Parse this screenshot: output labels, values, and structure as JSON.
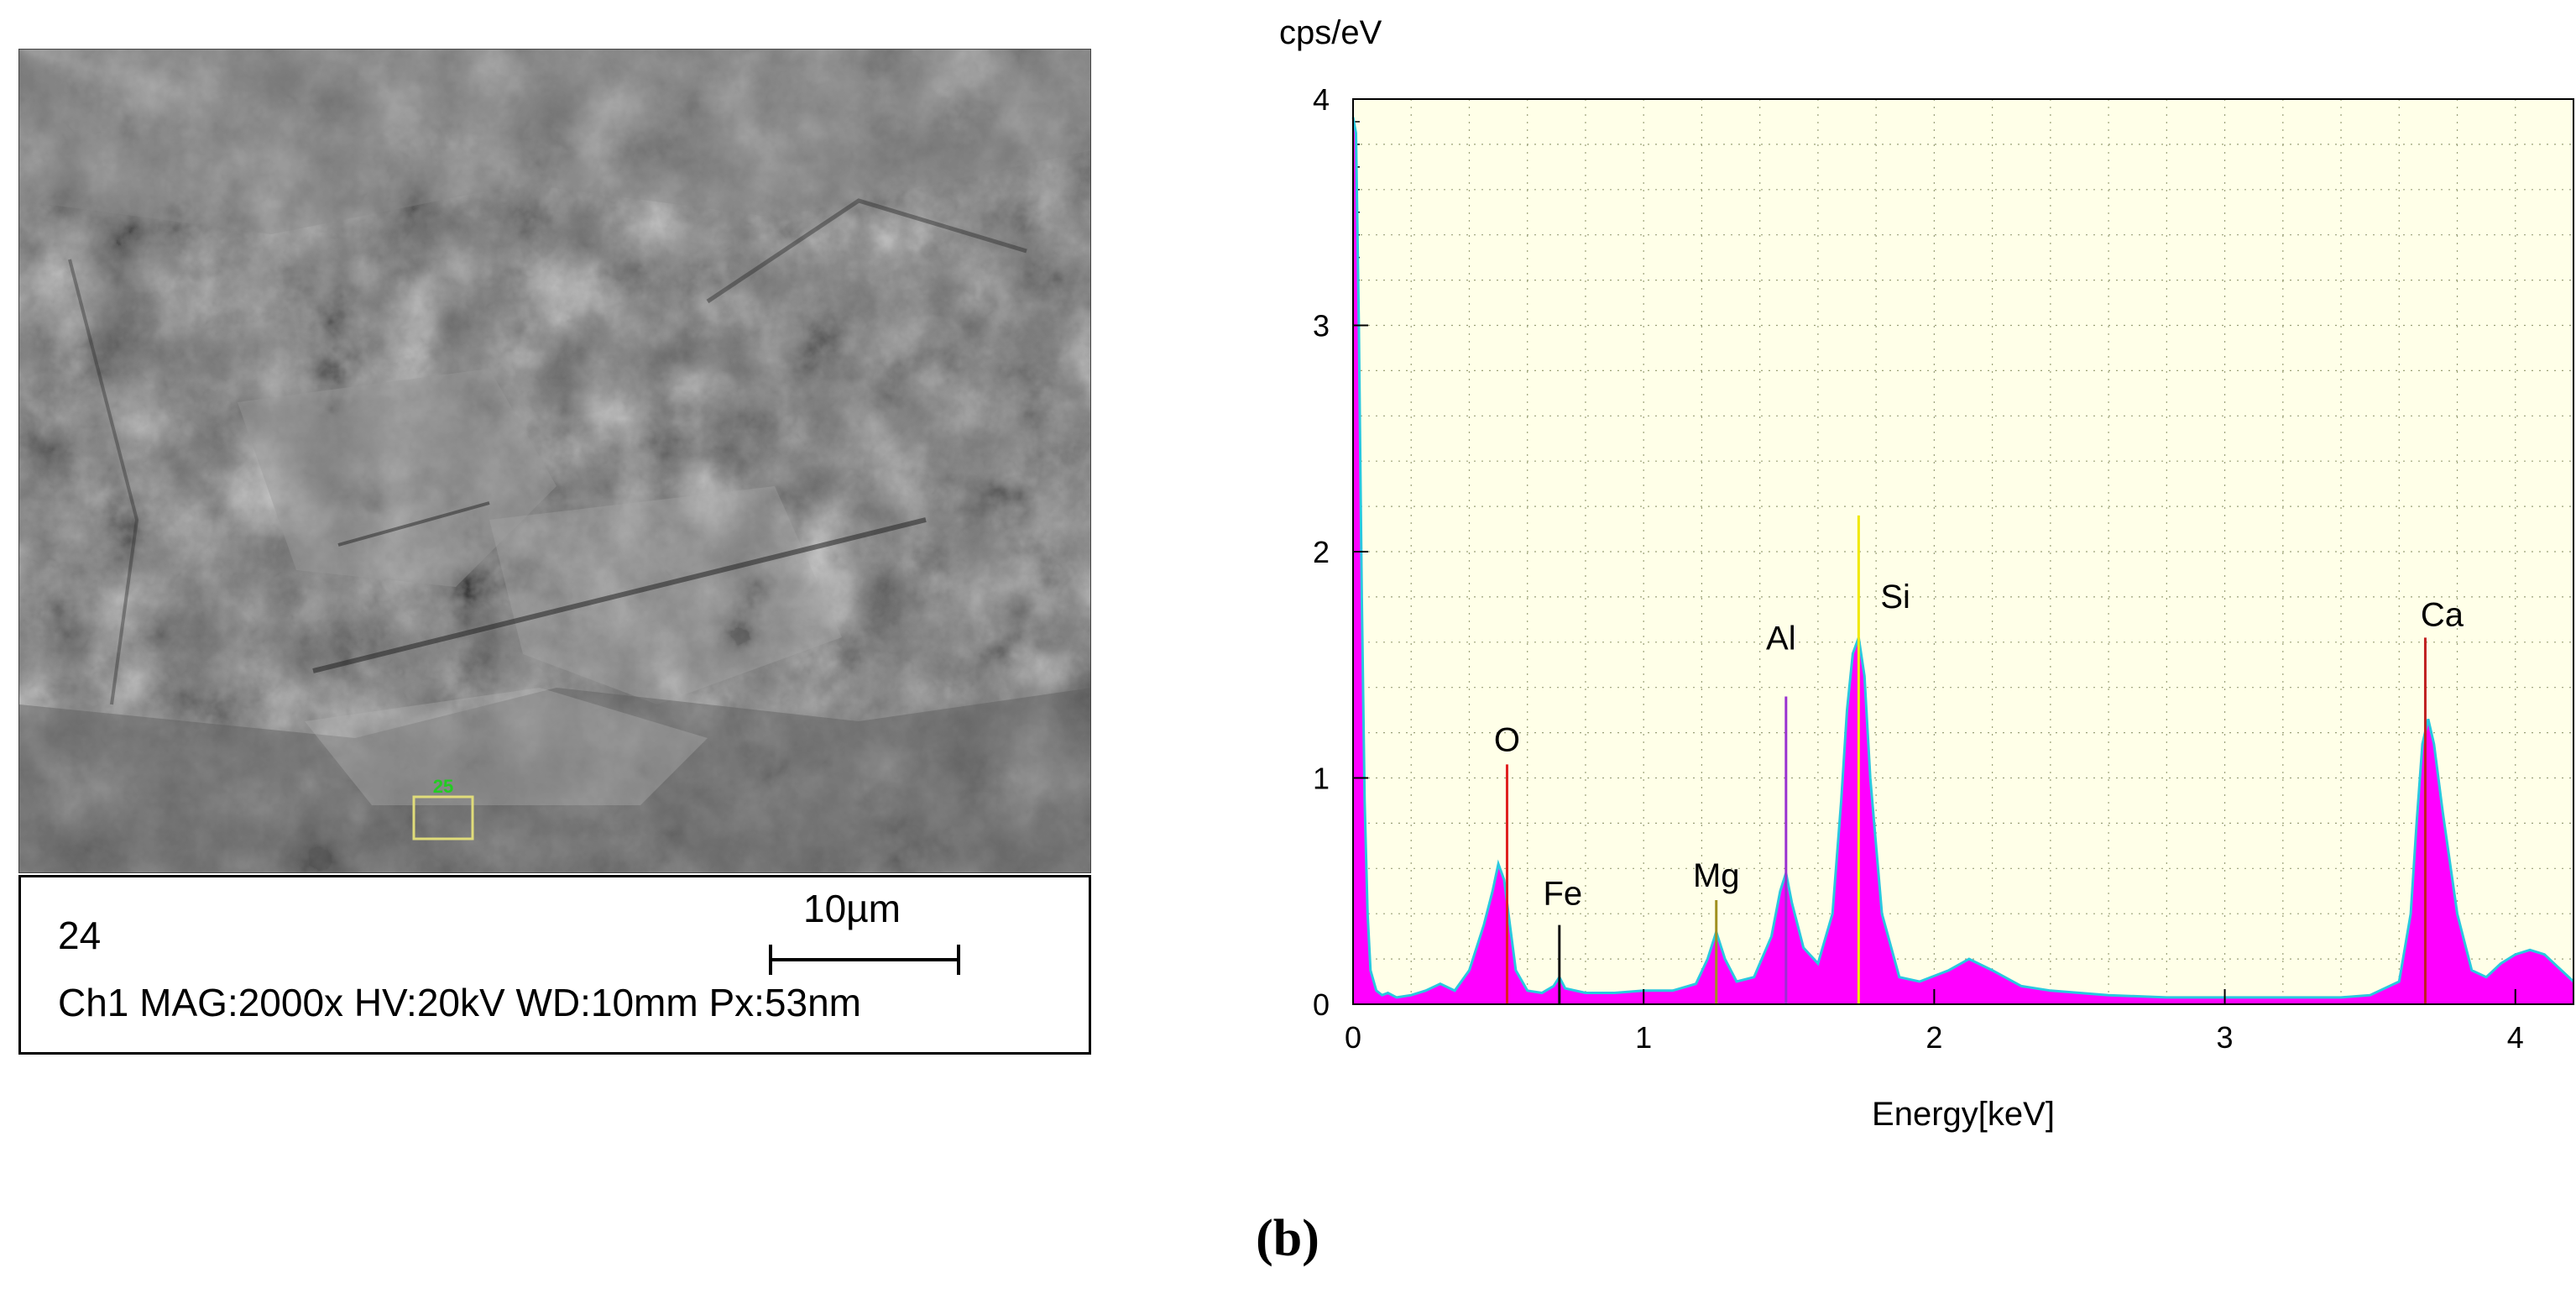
{
  "sem": {
    "roi_label": "25",
    "frame_number": "24",
    "parameters": "Ch1  MAG:2000x HV:20kV WD:10mm Px:53nm",
    "scale_label": "10µm",
    "roi_color": "#e0dc7a",
    "roi_label_color": "#22cc22"
  },
  "panel_label": "(b)",
  "chart_data": {
    "type": "area",
    "ylabel": "cps/eV",
    "xlabel": "Energy[keV]",
    "xlim": [
      0,
      4.2
    ],
    "ylim": [
      0,
      4
    ],
    "xticks": [
      "0",
      "1",
      "2",
      "3",
      "4"
    ],
    "yticks": [
      "0",
      "1",
      "2",
      "3",
      "4"
    ],
    "grid": true,
    "fill_color": "#ff00ff",
    "outline_color": "#29c8e0",
    "spectrum": {
      "x": [
        0.0,
        0.01,
        0.02,
        0.03,
        0.04,
        0.05,
        0.06,
        0.08,
        0.1,
        0.12,
        0.15,
        0.2,
        0.25,
        0.3,
        0.35,
        0.4,
        0.45,
        0.48,
        0.5,
        0.52,
        0.54,
        0.56,
        0.6,
        0.65,
        0.69,
        0.71,
        0.73,
        0.8,
        0.9,
        1.0,
        1.1,
        1.18,
        1.22,
        1.25,
        1.28,
        1.32,
        1.38,
        1.44,
        1.47,
        1.49,
        1.51,
        1.55,
        1.6,
        1.65,
        1.68,
        1.7,
        1.72,
        1.74,
        1.76,
        1.78,
        1.82,
        1.88,
        1.95,
        2.05,
        2.12,
        2.2,
        2.3,
        2.4,
        2.5,
        2.6,
        2.8,
        3.0,
        3.2,
        3.4,
        3.5,
        3.6,
        3.64,
        3.66,
        3.68,
        3.7,
        3.72,
        3.75,
        3.8,
        3.85,
        3.9,
        3.95,
        4.0,
        4.05,
        4.1,
        4.15,
        4.2
      ],
      "y": [
        3.92,
        3.85,
        3.0,
        1.8,
        0.9,
        0.4,
        0.15,
        0.06,
        0.04,
        0.05,
        0.03,
        0.04,
        0.06,
        0.09,
        0.06,
        0.15,
        0.35,
        0.5,
        0.62,
        0.55,
        0.35,
        0.15,
        0.06,
        0.05,
        0.08,
        0.12,
        0.07,
        0.05,
        0.05,
        0.06,
        0.06,
        0.09,
        0.2,
        0.32,
        0.2,
        0.1,
        0.12,
        0.3,
        0.5,
        0.58,
        0.45,
        0.25,
        0.18,
        0.4,
        0.9,
        1.3,
        1.55,
        1.62,
        1.45,
        1.0,
        0.4,
        0.12,
        0.1,
        0.15,
        0.2,
        0.15,
        0.08,
        0.06,
        0.05,
        0.04,
        0.03,
        0.03,
        0.03,
        0.03,
        0.04,
        0.1,
        0.4,
        0.8,
        1.15,
        1.26,
        1.15,
        0.85,
        0.4,
        0.15,
        0.12,
        0.18,
        0.22,
        0.24,
        0.22,
        0.16,
        0.1
      ]
    },
    "peaks": [
      {
        "element": "O",
        "x": 0.53,
        "line_top": 1.06,
        "color": "#e02020"
      },
      {
        "element": "Fe",
        "x": 0.71,
        "line_top": 0.35,
        "color": "#111111"
      },
      {
        "element": "Mg",
        "x": 1.25,
        "line_top": 0.46,
        "color": "#a09020"
      },
      {
        "element": "Al",
        "x": 1.49,
        "line_top": 1.36,
        "color": "#9a30d0"
      },
      {
        "element": "Si",
        "x": 1.74,
        "line_top": 2.16,
        "color": "#f0e800"
      },
      {
        "element": "Ca",
        "x": 3.69,
        "line_top": 1.62,
        "color": "#c02020"
      }
    ]
  }
}
